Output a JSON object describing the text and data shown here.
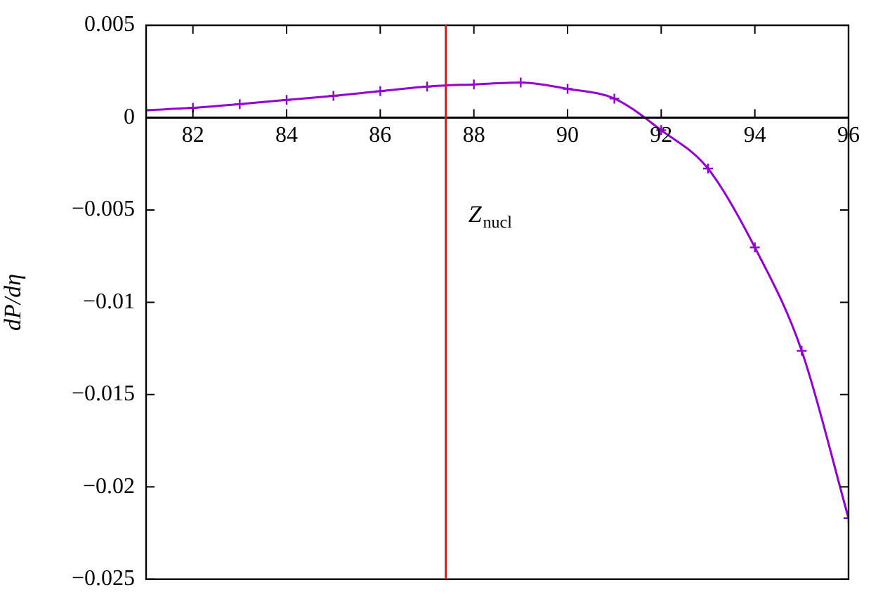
{
  "chart_data": {
    "type": "line",
    "ylabel": "dP/dη",
    "x": [
      81,
      82,
      83,
      84,
      85,
      86,
      87,
      88,
      89,
      90,
      91,
      92,
      93,
      94,
      95,
      96
    ],
    "series": [
      {
        "color": "#9400d3",
        "values": [
          0.0004,
          0.00053,
          0.00073,
          0.00096,
          0.00118,
          0.00143,
          0.00168,
          0.0018,
          0.0019,
          0.00156,
          0.00103,
          -0.00068,
          -0.00276,
          -0.00703,
          -0.01263,
          -0.02169
        ]
      }
    ],
    "xlim": [
      81,
      96
    ],
    "xticks": [
      82,
      84,
      86,
      88,
      90,
      92,
      94,
      96
    ],
    "ylim": [
      -0.025,
      0.005
    ],
    "yticks": [
      {
        "value": 0.005,
        "label": "0.005"
      },
      0,
      {
        "value": -0.005,
        "label": "−0.005"
      },
      {
        "value": -0.01,
        "label": "−0.01"
      },
      {
        "value": -0.015,
        "label": "−0.015"
      },
      {
        "value": -0.02,
        "label": "−0.02"
      },
      {
        "value": -0.025,
        "label": "−0.025"
      }
    ],
    "ref_lines": [
      {
        "axis": "x",
        "value": 87.4,
        "label": "Z$_{nucl}$",
        "color": "#e8141b"
      }
    ],
    "grid": false,
    "legend": false,
    "marker": "cross",
    "line_style": "solid"
  }
}
